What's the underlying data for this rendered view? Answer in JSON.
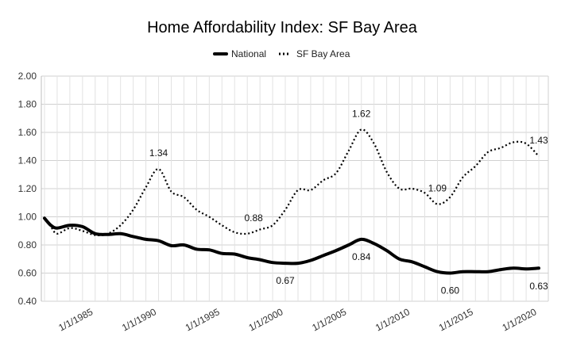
{
  "chart_data": {
    "type": "line",
    "title": "Home Affordability Index: SF Bay Area",
    "xlabel": "",
    "ylabel": "",
    "ylim": [
      0.4,
      2.0
    ],
    "yticks": [
      "0.40",
      "0.60",
      "0.80",
      "1.00",
      "1.20",
      "1.40",
      "1.60",
      "1.80",
      "2.00"
    ],
    "xlim": [
      1980.75,
      2020.75
    ],
    "xticks": [
      {
        "year": 1985,
        "label": "1/1/1985"
      },
      {
        "year": 1990,
        "label": "1/1/1990"
      },
      {
        "year": 1995,
        "label": "1/1/1995"
      },
      {
        "year": 2000,
        "label": "1/1/2000"
      },
      {
        "year": 2005,
        "label": "1/1/2005"
      },
      {
        "year": 2010,
        "label": "1/1/2010"
      },
      {
        "year": 2015,
        "label": "1/1/2015"
      },
      {
        "year": 2020,
        "label": "1/1/2020"
      }
    ],
    "legend": {
      "placement": "top-center"
    },
    "series": [
      {
        "name": "National",
        "style": "solid",
        "color": "#000000",
        "points": [
          [
            1981.0,
            0.99
          ],
          [
            1981.5,
            0.94
          ],
          [
            1982.0,
            0.92
          ],
          [
            1983.0,
            0.94
          ],
          [
            1984.0,
            0.93
          ],
          [
            1985.0,
            0.88
          ],
          [
            1986.0,
            0.875
          ],
          [
            1987.0,
            0.88
          ],
          [
            1988.0,
            0.86
          ],
          [
            1989.0,
            0.84
          ],
          [
            1990.0,
            0.83
          ],
          [
            1991.0,
            0.795
          ],
          [
            1992.0,
            0.8
          ],
          [
            1993.0,
            0.77
          ],
          [
            1994.0,
            0.765
          ],
          [
            1995.0,
            0.74
          ],
          [
            1996.0,
            0.735
          ],
          [
            1997.0,
            0.71
          ],
          [
            1998.0,
            0.695
          ],
          [
            1999.0,
            0.675
          ],
          [
            2000.0,
            0.67
          ],
          [
            2001.0,
            0.67
          ],
          [
            2002.0,
            0.69
          ],
          [
            2003.0,
            0.725
          ],
          [
            2004.0,
            0.76
          ],
          [
            2005.0,
            0.8
          ],
          [
            2006.0,
            0.84
          ],
          [
            2007.0,
            0.81
          ],
          [
            2008.0,
            0.76
          ],
          [
            2009.0,
            0.7
          ],
          [
            2010.0,
            0.68
          ],
          [
            2011.0,
            0.645
          ],
          [
            2012.0,
            0.61
          ],
          [
            2013.0,
            0.6
          ],
          [
            2014.0,
            0.61
          ],
          [
            2015.0,
            0.61
          ],
          [
            2016.0,
            0.61
          ],
          [
            2017.0,
            0.625
          ],
          [
            2018.0,
            0.635
          ],
          [
            2019.0,
            0.63
          ],
          [
            2020.0,
            0.635
          ]
        ]
      },
      {
        "name": "SF Bay Area",
        "style": "dotted",
        "color": "#000000",
        "points": [
          [
            1981.0,
            0.99
          ],
          [
            1981.5,
            0.93
          ],
          [
            1982.0,
            0.88
          ],
          [
            1983.0,
            0.92
          ],
          [
            1984.0,
            0.9
          ],
          [
            1985.0,
            0.87
          ],
          [
            1986.0,
            0.88
          ],
          [
            1987.0,
            0.94
          ],
          [
            1988.0,
            1.05
          ],
          [
            1989.0,
            1.21
          ],
          [
            1990.0,
            1.34
          ],
          [
            1991.0,
            1.18
          ],
          [
            1992.0,
            1.14
          ],
          [
            1993.0,
            1.05
          ],
          [
            1994.0,
            1.0
          ],
          [
            1995.0,
            0.94
          ],
          [
            1996.0,
            0.89
          ],
          [
            1997.0,
            0.88
          ],
          [
            1998.0,
            0.91
          ],
          [
            1999.0,
            0.94
          ],
          [
            2000.0,
            1.05
          ],
          [
            2001.0,
            1.19
          ],
          [
            2002.0,
            1.19
          ],
          [
            2003.0,
            1.26
          ],
          [
            2004.0,
            1.31
          ],
          [
            2005.0,
            1.47
          ],
          [
            2006.0,
            1.62
          ],
          [
            2007.0,
            1.52
          ],
          [
            2008.0,
            1.32
          ],
          [
            2009.0,
            1.2
          ],
          [
            2010.0,
            1.2
          ],
          [
            2011.0,
            1.17
          ],
          [
            2012.0,
            1.09
          ],
          [
            2013.0,
            1.14
          ],
          [
            2014.0,
            1.28
          ],
          [
            2015.0,
            1.36
          ],
          [
            2016.0,
            1.46
          ],
          [
            2017.0,
            1.49
          ],
          [
            2018.0,
            1.53
          ],
          [
            2019.0,
            1.52
          ],
          [
            2020.0,
            1.43
          ]
        ]
      }
    ],
    "annotations": [
      {
        "series": "SF Bay Area",
        "x": 1990.0,
        "y": 1.34,
        "label": "1.34",
        "position": "above"
      },
      {
        "series": "SF Bay Area",
        "x": 1997.5,
        "y": 0.88,
        "label": "0.88",
        "position": "above"
      },
      {
        "series": "SF Bay Area",
        "x": 2006.0,
        "y": 1.62,
        "label": "1.62",
        "position": "above"
      },
      {
        "series": "SF Bay Area",
        "x": 2012.0,
        "y": 1.09,
        "label": "1.09",
        "position": "above"
      },
      {
        "series": "SF Bay Area",
        "x": 2020.0,
        "y": 1.43,
        "label": "1.43",
        "position": "above"
      },
      {
        "series": "National",
        "x": 2000.0,
        "y": 0.67,
        "label": "0.67",
        "position": "below"
      },
      {
        "series": "National",
        "x": 2006.0,
        "y": 0.84,
        "label": "0.84",
        "position": "below"
      },
      {
        "series": "National",
        "x": 2013.0,
        "y": 0.6,
        "label": "0.60",
        "position": "below"
      },
      {
        "series": "National",
        "x": 2020.0,
        "y": 0.63,
        "label": "0.63",
        "position": "below"
      }
    ]
  }
}
